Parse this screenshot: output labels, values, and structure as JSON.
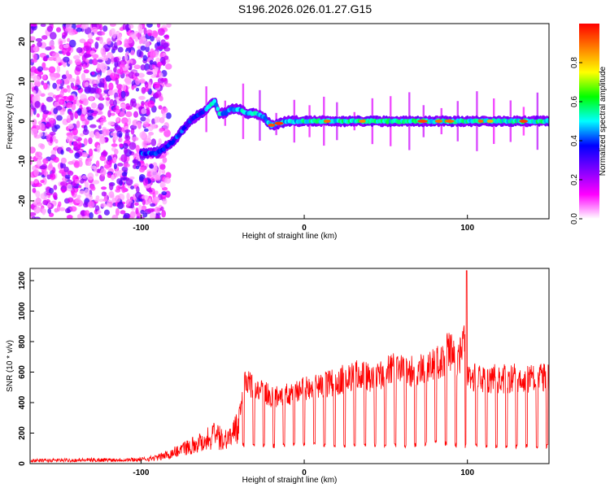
{
  "title": "S196.2026.026.01.27.G15",
  "chart_data": [
    {
      "type": "heatmap",
      "xlabel": "Height of straight line (km)",
      "ylabel": "Frequency (Hz)",
      "xlim": [
        -168,
        150
      ],
      "ylim": [
        -24.5,
        24.5
      ],
      "xticks": [
        -100,
        0,
        100
      ],
      "xtick_labels": [
        "-100",
        "0",
        "100"
      ],
      "yticks": [
        -20,
        -10,
        0,
        10,
        20
      ],
      "ytick_labels": [
        "-20",
        "-10",
        "0",
        "10",
        "20"
      ],
      "colorbar": {
        "label": "Normalized spectral amplitude",
        "range": [
          0,
          1
        ],
        "ticks": [
          0.0,
          0.2,
          0.4,
          0.6,
          0.8
        ],
        "tick_labels": [
          "0.0",
          "0.2",
          "0.4",
          "0.6",
          "0.8"
        ],
        "colormap": [
          "#ffffff",
          "#ff00ff",
          "#7f00ff",
          "#0000ff",
          "#00ffff",
          "#00ff00",
          "#ffff00",
          "#ff7f00",
          "#ff0000"
        ]
      },
      "ridge": {
        "description_series": "dominant frequency trace",
        "x": [
          -100,
          -90,
          -80,
          -70,
          -60,
          -55,
          -52,
          -48,
          -45,
          -40,
          -35,
          -30,
          -25,
          -20,
          -10,
          0,
          20,
          40,
          60,
          80,
          100,
          120,
          150
        ],
        "y": [
          -8,
          -8,
          -5,
          0,
          3,
          5,
          2,
          2,
          3,
          3,
          2,
          2,
          1,
          -1,
          0,
          0,
          0,
          0,
          0,
          0,
          0,
          0,
          0
        ]
      }
    },
    {
      "type": "line",
      "xlabel": "Height of straight line (km)",
      "ylabel": "SNR (10 * v/v)",
      "xlim": [
        -168,
        150
      ],
      "ylim": [
        0,
        1280
      ],
      "xticks": [
        -100,
        0,
        100
      ],
      "xtick_labels": [
        "-100",
        "0",
        "100"
      ],
      "yticks": [
        0,
        200,
        400,
        600,
        800,
        1000,
        1200
      ],
      "ytick_labels": [
        "0",
        "200",
        "400",
        "600",
        "800",
        "1000",
        "1200"
      ],
      "color": "#ff0000",
      "envelope": {
        "x": [
          -168,
          -140,
          -100,
          -90,
          -80,
          -70,
          -62,
          -55,
          -50,
          -45,
          -40,
          -36,
          -30,
          -25,
          -20,
          -10,
          0,
          10,
          20,
          30,
          35,
          40,
          50,
          55,
          60,
          70,
          80,
          85,
          88,
          90,
          95,
          98,
          100,
          110,
          120,
          130,
          150
        ],
        "y": [
          30,
          35,
          40,
          60,
          110,
          170,
          220,
          280,
          230,
          260,
          360,
          640,
          560,
          560,
          500,
          530,
          570,
          600,
          630,
          680,
          700,
          660,
          700,
          740,
          710,
          720,
          770,
          780,
          880,
          850,
          810,
          1000,
          660,
          660,
          650,
          660,
          660
        ]
      },
      "baseline": {
        "x": [
          -168,
          -100,
          -80,
          -60,
          -40,
          -35,
          -20,
          0,
          20,
          40,
          60,
          80,
          100,
          120,
          150
        ],
        "y": [
          20,
          25,
          40,
          80,
          100,
          110,
          100,
          110,
          100,
          110,
          100,
          120,
          100,
          100,
          100
        ]
      },
      "peaks": [
        {
          "x": 99.5,
          "y": 1265
        }
      ]
    }
  ]
}
